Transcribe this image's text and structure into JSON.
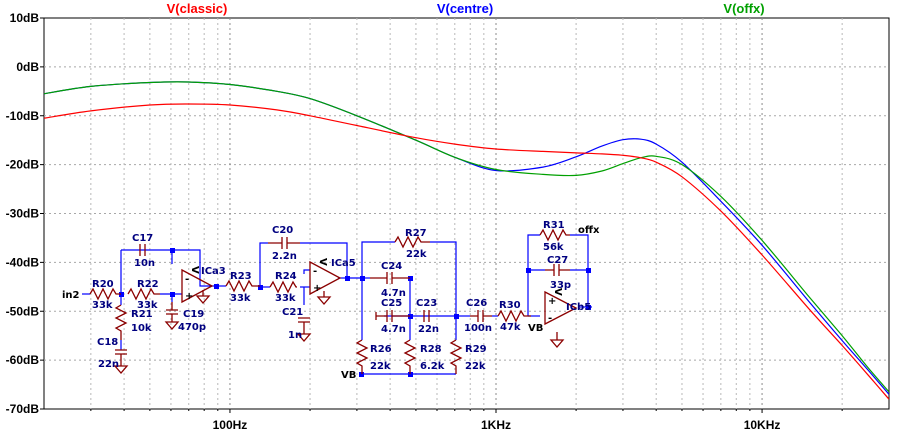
{
  "chart_data": {
    "type": "line",
    "title": "",
    "xlabel": "",
    "ylabel": "",
    "x_scale": "log",
    "xlim": [
      20,
      30000
    ],
    "ylim": [
      -70,
      10
    ],
    "x_ticks": [
      {
        "value": 100,
        "label": "100Hz"
      },
      {
        "value": 1000,
        "label": "1KHz"
      },
      {
        "value": 10000,
        "label": "10KHz"
      }
    ],
    "y_ticks": [
      {
        "value": 10,
        "label": "10dB"
      },
      {
        "value": 0,
        "label": "0dB"
      },
      {
        "value": -10,
        "label": "-10dB"
      },
      {
        "value": -20,
        "label": "-20dB"
      },
      {
        "value": -30,
        "label": "-30dB"
      },
      {
        "value": -40,
        "label": "-40dB"
      },
      {
        "value": -50,
        "label": "-50dB"
      },
      {
        "value": -60,
        "label": "-60dB"
      },
      {
        "value": -70,
        "label": "-70dB"
      }
    ],
    "grid": true,
    "legend_position": "top",
    "series": [
      {
        "name": "V(classic)",
        "color": "#ff0000",
        "x": [
          20,
          30,
          50,
          70,
          100,
          150,
          200,
          300,
          500,
          700,
          1000,
          1500,
          2000,
          2500,
          3000,
          3500,
          4000,
          5000,
          7000,
          10000,
          15000,
          20000,
          25000,
          30000
        ],
        "y": [
          -10.5,
          -9,
          -7.8,
          -7.6,
          -7.8,
          -8.8,
          -10,
          -12,
          -14.5,
          -15.8,
          -16.8,
          -17.3,
          -17.6,
          -17.8,
          -18.1,
          -18.6,
          -19.5,
          -22.5,
          -29.5,
          -38.5,
          -49.5,
          -57,
          -63,
          -68
        ]
      },
      {
        "name": "V(centre)",
        "color": "#0000ff",
        "x": [
          20,
          30,
          50,
          70,
          100,
          150,
          200,
          300,
          500,
          700,
          1000,
          1500,
          2000,
          2500,
          3000,
          3500,
          4000,
          5000,
          7000,
          10000,
          15000,
          20000,
          25000,
          30000
        ],
        "y": [
          -5.5,
          -4,
          -3.2,
          -3.1,
          -3.6,
          -5,
          -6.5,
          -10,
          -15,
          -18.5,
          -21.2,
          -20.5,
          -18.4,
          -16.2,
          -14.9,
          -14.8,
          -15.8,
          -19.5,
          -27.5,
          -36.5,
          -48,
          -56,
          -62,
          -67
        ]
      },
      {
        "name": "V(offx)",
        "color": "#00a000",
        "x": [
          20,
          30,
          50,
          70,
          100,
          150,
          200,
          300,
          500,
          700,
          1000,
          1500,
          2000,
          2500,
          3000,
          3500,
          4000,
          5000,
          7000,
          10000,
          15000,
          20000,
          25000,
          30000
        ],
        "y": [
          -5.5,
          -4,
          -3.2,
          -3.1,
          -3.6,
          -5,
          -6.5,
          -10,
          -15,
          -18.5,
          -21,
          -22,
          -22.2,
          -21.3,
          -19.8,
          -18.6,
          -18.3,
          -20,
          -26.5,
          -35.5,
          -47,
          -55,
          -61.5,
          -66.5
        ]
      }
    ]
  },
  "schematic": {
    "labels": [
      "R20",
      "33k",
      "in2",
      "C17",
      "10n",
      "R22",
      "33k",
      "R21",
      "10k",
      "C18",
      "22n",
      "ICa3",
      "C19",
      "470p",
      "R23",
      "33k",
      "C20",
      "2.2n",
      "R24",
      "33k",
      "C21",
      "1n",
      "ICa5",
      "R27",
      "22k",
      "C24",
      "4.7n",
      "C25",
      "4.7n",
      "C23",
      "22n",
      "R26",
      "22k",
      "R28",
      "6.2k",
      "R29",
      "22k",
      "VB",
      "C26",
      "100n",
      "R30",
      "47k",
      "R31",
      "56k",
      "offx",
      "C27",
      "33p",
      "ICb5",
      "VB"
    ],
    "opamp_plus": "+",
    "opamp_minus": "-",
    "opamp_v": "V"
  }
}
